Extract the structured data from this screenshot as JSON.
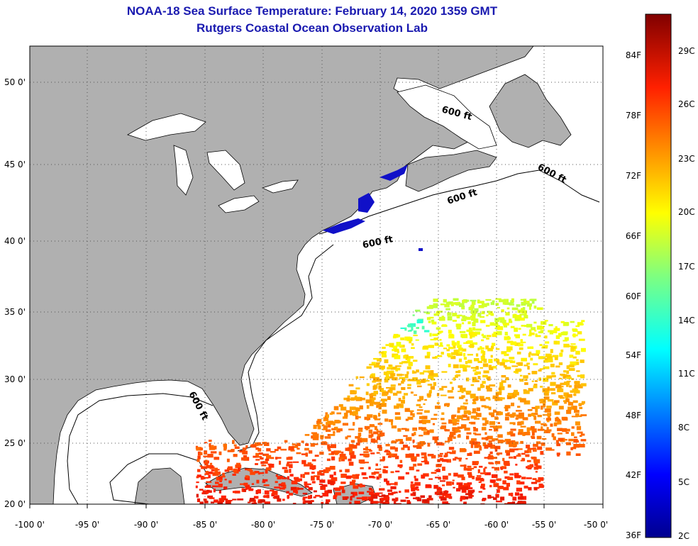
{
  "header": {
    "title": "NOAA-18 Sea Surface Temperature:  February 14, 2020 1359 GMT",
    "subtitle": "Rutgers Coastal Ocean Observation Lab"
  },
  "map": {
    "lat_labels": [
      "50 0'",
      "45 0'",
      "40 0'",
      "35 0'",
      "30 0'",
      "25 0'",
      "20 0'"
    ],
    "lon_labels": [
      "-100 0'",
      "-95 0'",
      "-90 0'",
      "-85 0'",
      "-80 0'",
      "-75 0'",
      "-70 0'",
      "-65 0'",
      "-60 0'",
      "-55 0'",
      "-50 0'"
    ],
    "isobath_label": "600 ft",
    "colors": {
      "land": "#b0b0b0",
      "ocean": "#ffffff",
      "grid": "#555555"
    }
  },
  "colorbar": {
    "fahrenheit_labels": [
      "84F",
      "78F",
      "72F",
      "66F",
      "60F",
      "54F",
      "48F",
      "42F",
      "36F"
    ],
    "celsius_labels": [
      "29C",
      "26C",
      "23C",
      "20C",
      "17C",
      "14C",
      "11C",
      "8C",
      "5C",
      "2C"
    ]
  }
}
